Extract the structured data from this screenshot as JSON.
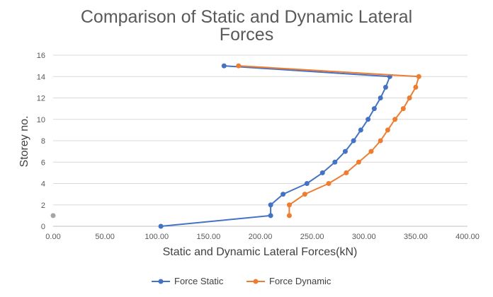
{
  "chart_data": {
    "type": "scatter",
    "title_lines": [
      "Comparison of Static and Dynamic Lateral",
      "Forces"
    ],
    "xlabel": "Static and Dynamic Lateral Forces(kN)",
    "ylabel": "Storey no.",
    "xlim": [
      0,
      400
    ],
    "ylim": [
      0,
      16
    ],
    "x_ticks": [
      "0.00",
      "50.00",
      "100.00",
      "150.00",
      "200.00",
      "250.00",
      "300.00",
      "350.00",
      "400.00"
    ],
    "y_ticks": [
      "0",
      "2",
      "4",
      "6",
      "8",
      "10",
      "12",
      "14",
      "16"
    ],
    "grid": "horizontal",
    "legend_position": "bottom",
    "series": [
      {
        "name": "Force Static",
        "color": "#4472C4",
        "points": [
          [
            104,
            0
          ],
          [
            210,
            1
          ],
          [
            210,
            2
          ],
          [
            222,
            3
          ],
          [
            245,
            4
          ],
          [
            260,
            5
          ],
          [
            272,
            6
          ],
          [
            282,
            7
          ],
          [
            290,
            8
          ],
          [
            297,
            9
          ],
          [
            304,
            10
          ],
          [
            310,
            11
          ],
          [
            316,
            12
          ],
          [
            321,
            13
          ],
          [
            325,
            14
          ],
          [
            165,
            15
          ]
        ]
      },
      {
        "name": "Force Dynamic",
        "color": "#ED7D31",
        "points": [
          [
            228,
            1
          ],
          [
            228,
            2
          ],
          [
            243,
            3
          ],
          [
            266,
            4
          ],
          [
            283,
            5
          ],
          [
            295,
            6
          ],
          [
            307,
            7
          ],
          [
            316,
            8
          ],
          [
            323,
            9
          ],
          [
            330,
            10
          ],
          [
            338,
            11
          ],
          [
            344,
            12
          ],
          [
            350,
            13
          ],
          [
            353,
            14
          ],
          [
            179,
            15
          ]
        ]
      },
      {
        "name": "",
        "color": "#A5A5A5",
        "points": [
          [
            0,
            1
          ]
        ]
      }
    ]
  }
}
